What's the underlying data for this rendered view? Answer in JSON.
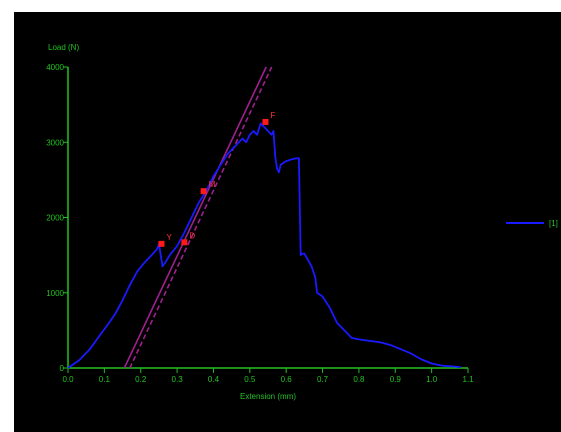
{
  "colors": {
    "background": "#000000",
    "axis": "#22c222",
    "curve": "#1a1aff",
    "line_solid": "#a0208f",
    "line_dashed": "#a0208f",
    "marker": "#ff1a1a",
    "marker_label": "#ff3333"
  },
  "chart_data": {
    "type": "line",
    "title": "",
    "xlabel": "Extension (mm)",
    "ylabel": "Load (N)",
    "xlim": [
      0,
      1.1
    ],
    "ylim": [
      0,
      4000
    ],
    "xticks": [
      "0.0",
      "0.1",
      "0.2",
      "0.3",
      "0.4",
      "0.5",
      "0.6",
      "0.7",
      "0.8",
      "0.9",
      "1.0",
      "1.1"
    ],
    "yticks": [
      "0",
      "1000",
      "2000",
      "3000",
      "4000"
    ],
    "legend": {
      "placement": "right",
      "label": "[1]"
    },
    "series": [
      {
        "name": "[1]",
        "x": [
          0,
          0.03,
          0.06,
          0.09,
          0.11,
          0.13,
          0.15,
          0.17,
          0.19,
          0.21,
          0.23,
          0.245,
          0.25,
          0.26,
          0.27,
          0.28,
          0.3,
          0.32,
          0.34,
          0.36,
          0.38,
          0.4,
          0.42,
          0.44,
          0.46,
          0.48,
          0.49,
          0.5,
          0.51,
          0.52,
          0.53,
          0.54,
          0.55,
          0.56,
          0.565,
          0.57,
          0.575,
          0.58,
          0.585,
          0.6,
          0.62,
          0.635,
          0.64,
          0.645,
          0.65,
          0.67,
          0.68,
          0.685,
          0.7,
          0.72,
          0.74,
          0.76,
          0.78,
          0.8,
          0.83,
          0.86,
          0.89,
          0.91,
          0.94,
          0.97,
          1.0,
          1.03,
          1.06,
          1.08
        ],
        "y": [
          0,
          100,
          250,
          450,
          580,
          720,
          900,
          1100,
          1280,
          1400,
          1500,
          1580,
          1650,
          1350,
          1420,
          1500,
          1620,
          1800,
          2000,
          2200,
          2350,
          2550,
          2700,
          2850,
          2950,
          3050,
          3000,
          3100,
          3150,
          3100,
          3250,
          3200,
          3150,
          3100,
          3150,
          2800,
          2650,
          2600,
          2700,
          2750,
          2780,
          2790,
          1500,
          1520,
          1520,
          1350,
          1200,
          1000,
          950,
          800,
          600,
          500,
          400,
          380,
          360,
          340,
          300,
          260,
          200,
          120,
          60,
          30,
          20,
          10
        ]
      }
    ],
    "reference_lines": [
      {
        "style": "solid",
        "x": [
          0.155,
          0.545
        ],
        "y": [
          0,
          4000
        ]
      },
      {
        "style": "dashed",
        "x": [
          0.17,
          0.56
        ],
        "y": [
          0,
          4000
        ]
      }
    ],
    "markers": [
      {
        "label": "Y",
        "x": 0.257,
        "y": 1650
      },
      {
        "label": "D",
        "x": 0.32,
        "y": 1670
      },
      {
        "label": "M",
        "x": 0.373,
        "y": 2350
      },
      {
        "label": "F",
        "x": 0.543,
        "y": 3270
      }
    ]
  }
}
